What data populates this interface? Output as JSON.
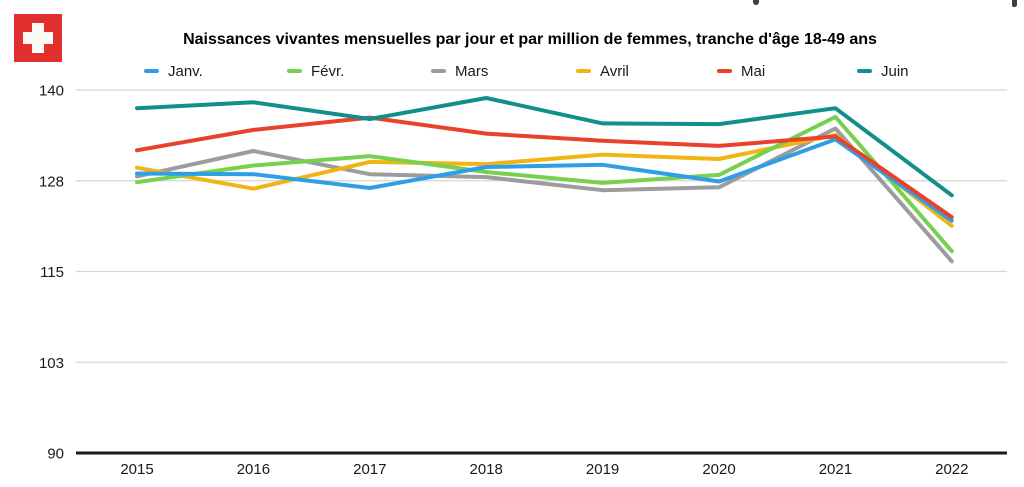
{
  "flag": {
    "country": "Switzerland",
    "red": "#E0302E",
    "cross": "#FCFAF4"
  },
  "chart_data": {
    "type": "line",
    "title": "Naissances vivantes mensuelles par jour et par million de femmes, tranche d'âge 18-49 ans",
    "categories": [
      "2015",
      "2016",
      "2017",
      "2018",
      "2019",
      "2020",
      "2021",
      "2022"
    ],
    "series": [
      {
        "name": "Janv.",
        "color": "#2E9FE6",
        "values": [
          128.5,
          128.4,
          126.5,
          129.4,
          129.7,
          127.4,
          133.2,
          122.0
        ]
      },
      {
        "name": "Févr.",
        "color": "#76D14E",
        "values": [
          127.3,
          129.6,
          130.9,
          128.7,
          127.2,
          128.3,
          136.3,
          117.8
        ]
      },
      {
        "name": "Mars",
        "color": "#9C9C9C",
        "values": [
          128.1,
          131.6,
          128.4,
          128.0,
          126.2,
          126.6,
          134.7,
          116.4
        ]
      },
      {
        "name": "Avril",
        "color": "#F0B414",
        "values": [
          129.3,
          126.4,
          130.1,
          129.8,
          131.1,
          130.5,
          133.8,
          121.3
        ]
      },
      {
        "name": "Mai",
        "color": "#E8412C",
        "values": [
          131.7,
          134.5,
          136.2,
          134.0,
          133.0,
          132.3,
          133.6,
          122.5
        ]
      },
      {
        "name": "Juin",
        "color": "#118F89",
        "values": [
          137.5,
          138.3,
          136.0,
          138.9,
          135.4,
          135.3,
          137.5,
          125.5
        ]
      }
    ],
    "y_ticks": [
      {
        "label": "140",
        "value": 140
      },
      {
        "label": "128",
        "value": 127.5
      },
      {
        "label": "115",
        "value": 115
      },
      {
        "label": "103",
        "value": 102.5
      },
      {
        "label": "90",
        "value": 90
      }
    ],
    "ylim": [
      90,
      140
    ],
    "xlabel": "",
    "ylabel": "",
    "grid": true,
    "legend_position": "top",
    "colors": {
      "gridline": "#d5d5d5",
      "axis": "#1a1a1a",
      "text": "#1a1a1a"
    }
  }
}
